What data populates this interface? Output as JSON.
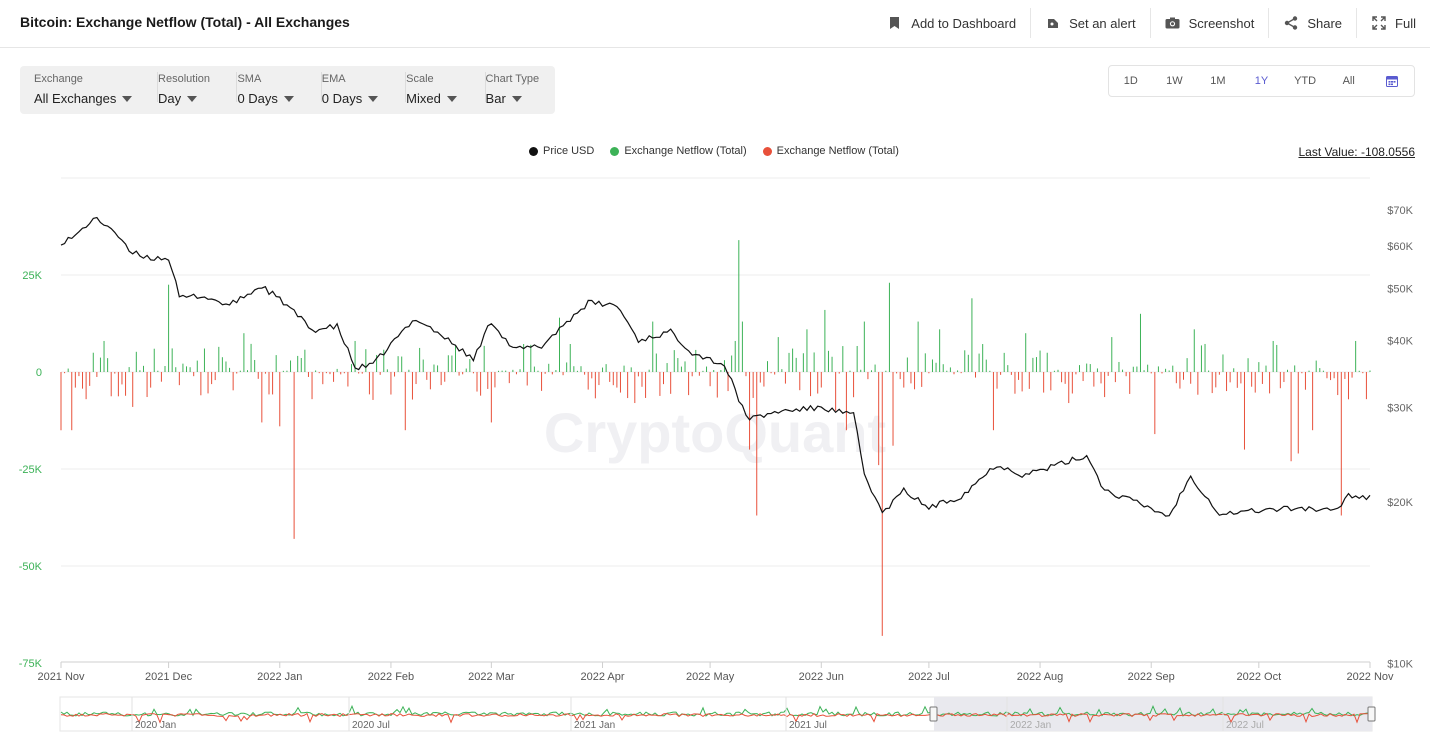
{
  "page": {
    "title": "Bitcoin: Exchange Netflow (Total) - All Exchanges"
  },
  "header_actions": [
    {
      "label": "Add to Dashboard",
      "icon": "bookmark-icon"
    },
    {
      "label": "Set an alert",
      "icon": "bell-icon"
    },
    {
      "label": "Screenshot",
      "icon": "camera-icon"
    },
    {
      "label": "Share",
      "icon": "share-icon"
    },
    {
      "label": "Full",
      "icon": "expand-icon"
    }
  ],
  "controls": [
    {
      "label": "Exchange",
      "value": "All Exchanges"
    },
    {
      "label": "Resolution",
      "value": "Day"
    },
    {
      "label": "SMA",
      "value": "0 Days"
    },
    {
      "label": "EMA",
      "value": "0 Days"
    },
    {
      "label": "Scale",
      "value": "Mixed"
    },
    {
      "label": "Chart Type",
      "value": "Bar"
    }
  ],
  "ranges": {
    "options": [
      "1D",
      "1W",
      "1M",
      "1Y",
      "YTD",
      "All"
    ],
    "active": "1Y",
    "calendar_icon": "calendar-icon"
  },
  "legend": [
    {
      "label": "Price USD",
      "color": "#111111"
    },
    {
      "label": "Exchange Netflow (Total)",
      "color": "#3cb257"
    },
    {
      "label": "Exchange Netflow (Total)",
      "color": "#e8503a"
    }
  ],
  "last_value": "Last Value: -108.0556",
  "watermark": "CryptoQuant",
  "chart_data": {
    "type": "bar",
    "x_range": [
      "2021-11-01",
      "2022-11-01"
    ],
    "x_ticks": [
      "2021 Nov",
      "2021 Dec",
      "2022 Jan",
      "2022 Feb",
      "2022 Mar",
      "2022 Apr",
      "2022 May",
      "2022 Jun",
      "2022 Jul",
      "2022 Aug",
      "2022 Sep",
      "2022 Oct",
      "2022 Nov"
    ],
    "y_left": {
      "ticks": [
        "25K",
        "0",
        "-25K",
        "-50K",
        "-75K"
      ],
      "range": [
        -75000,
        50000
      ],
      "scale": "linear"
    },
    "y_right": {
      "ticks": [
        "$70K",
        "$60K",
        "$50K",
        "$40K",
        "$30K",
        "$20K",
        "$10K"
      ],
      "range": [
        10000,
        75000
      ],
      "scale": "log"
    },
    "grid": true,
    "netflow_spikes": [
      {
        "date": "2021-11-01",
        "value": -15000
      },
      {
        "date": "2021-11-04",
        "value": -15000
      },
      {
        "date": "2021-11-08",
        "value": -7000
      },
      {
        "date": "2021-11-13",
        "value": 8000
      },
      {
        "date": "2021-11-21",
        "value": -9000
      },
      {
        "date": "2021-11-27",
        "value": 6000
      },
      {
        "date": "2021-12-01",
        "value": 22500
      },
      {
        "date": "2021-12-10",
        "value": -6000
      },
      {
        "date": "2021-12-22",
        "value": 10000
      },
      {
        "date": "2021-12-27",
        "value": -13000
      },
      {
        "date": "2022-01-01",
        "value": -14000
      },
      {
        "date": "2022-01-05",
        "value": -43000
      },
      {
        "date": "2022-01-10",
        "value": -7000
      },
      {
        "date": "2022-01-22",
        "value": 8000
      },
      {
        "date": "2022-02-05",
        "value": -15000
      },
      {
        "date": "2022-02-19",
        "value": 7000
      },
      {
        "date": "2022-03-01",
        "value": -13000
      },
      {
        "date": "2022-03-12",
        "value": 7000
      },
      {
        "date": "2022-03-20",
        "value": 14000
      },
      {
        "date": "2022-04-10",
        "value": -8000
      },
      {
        "date": "2022-04-15",
        "value": 13000
      },
      {
        "date": "2022-05-08",
        "value": 8000
      },
      {
        "date": "2022-05-09",
        "value": 34000
      },
      {
        "date": "2022-05-10",
        "value": 13000
      },
      {
        "date": "2022-05-12",
        "value": -20000
      },
      {
        "date": "2022-05-14",
        "value": -37000
      },
      {
        "date": "2022-05-20",
        "value": 9000
      },
      {
        "date": "2022-05-28",
        "value": 11000
      },
      {
        "date": "2022-06-02",
        "value": 16000
      },
      {
        "date": "2022-06-05",
        "value": -10000
      },
      {
        "date": "2022-06-08",
        "value": -15000
      },
      {
        "date": "2022-06-13",
        "value": 13000
      },
      {
        "date": "2022-06-17",
        "value": -24000
      },
      {
        "date": "2022-06-18",
        "value": -68000
      },
      {
        "date": "2022-06-20",
        "value": 23000
      },
      {
        "date": "2022-06-21",
        "value": -19000
      },
      {
        "date": "2022-06-28",
        "value": 13000
      },
      {
        "date": "2022-07-04",
        "value": 11000
      },
      {
        "date": "2022-07-13",
        "value": 19000
      },
      {
        "date": "2022-07-19",
        "value": -15000
      },
      {
        "date": "2022-07-28",
        "value": 10000
      },
      {
        "date": "2022-08-09",
        "value": -8000
      },
      {
        "date": "2022-08-21",
        "value": 9000
      },
      {
        "date": "2022-08-29",
        "value": 15000
      },
      {
        "date": "2022-09-02",
        "value": -16000
      },
      {
        "date": "2022-09-13",
        "value": 11000
      },
      {
        "date": "2022-09-27",
        "value": -20000
      },
      {
        "date": "2022-10-05",
        "value": 8000
      },
      {
        "date": "2022-10-10",
        "value": -23000
      },
      {
        "date": "2022-10-12",
        "value": -21000
      },
      {
        "date": "2022-10-16",
        "value": -15000
      },
      {
        "date": "2022-10-24",
        "value": -37000
      },
      {
        "date": "2022-10-28",
        "value": 8000
      },
      {
        "date": "2022-10-31",
        "value": -7000
      }
    ],
    "price_usd": [
      {
        "date": "2021-11-01",
        "value": 61000
      },
      {
        "date": "2021-11-05",
        "value": 62500
      },
      {
        "date": "2021-11-10",
        "value": 67500
      },
      {
        "date": "2021-11-15",
        "value": 65000
      },
      {
        "date": "2021-11-20",
        "value": 58500
      },
      {
        "date": "2021-11-26",
        "value": 57000
      },
      {
        "date": "2021-12-01",
        "value": 57000
      },
      {
        "date": "2021-12-04",
        "value": 48000
      },
      {
        "date": "2021-12-10",
        "value": 48500
      },
      {
        "date": "2021-12-18",
        "value": 46500
      },
      {
        "date": "2021-12-27",
        "value": 50500
      },
      {
        "date": "2022-01-03",
        "value": 46500
      },
      {
        "date": "2022-01-10",
        "value": 41800
      },
      {
        "date": "2022-01-17",
        "value": 42500
      },
      {
        "date": "2022-01-22",
        "value": 35500
      },
      {
        "date": "2022-01-27",
        "value": 36000
      },
      {
        "date": "2022-02-08",
        "value": 44000
      },
      {
        "date": "2022-02-16",
        "value": 40500
      },
      {
        "date": "2022-02-24",
        "value": 36800
      },
      {
        "date": "2022-03-01",
        "value": 43500
      },
      {
        "date": "2022-03-07",
        "value": 38500
      },
      {
        "date": "2022-03-15",
        "value": 39000
      },
      {
        "date": "2022-03-28",
        "value": 47000
      },
      {
        "date": "2022-04-05",
        "value": 46500
      },
      {
        "date": "2022-04-11",
        "value": 40000
      },
      {
        "date": "2022-04-20",
        "value": 41500
      },
      {
        "date": "2022-04-26",
        "value": 38000
      },
      {
        "date": "2022-05-05",
        "value": 36000
      },
      {
        "date": "2022-05-09",
        "value": 31000
      },
      {
        "date": "2022-05-12",
        "value": 28500
      },
      {
        "date": "2022-05-20",
        "value": 29500
      },
      {
        "date": "2022-06-01",
        "value": 30000
      },
      {
        "date": "2022-06-10",
        "value": 29000
      },
      {
        "date": "2022-06-13",
        "value": 22500
      },
      {
        "date": "2022-06-18",
        "value": 19000
      },
      {
        "date": "2022-06-24",
        "value": 21000
      },
      {
        "date": "2022-07-01",
        "value": 19500
      },
      {
        "date": "2022-07-10",
        "value": 20500
      },
      {
        "date": "2022-07-20",
        "value": 23500
      },
      {
        "date": "2022-07-27",
        "value": 22500
      },
      {
        "date": "2022-08-02",
        "value": 23000
      },
      {
        "date": "2022-08-14",
        "value": 24400
      },
      {
        "date": "2022-08-19",
        "value": 21000
      },
      {
        "date": "2022-08-26",
        "value": 20200
      },
      {
        "date": "2022-09-06",
        "value": 18800
      },
      {
        "date": "2022-09-12",
        "value": 22300
      },
      {
        "date": "2022-09-20",
        "value": 19000
      },
      {
        "date": "2022-10-01",
        "value": 19300
      },
      {
        "date": "2022-10-13",
        "value": 19500
      },
      {
        "date": "2022-10-22",
        "value": 19200
      },
      {
        "date": "2022-10-26",
        "value": 20600
      },
      {
        "date": "2022-11-01",
        "value": 20400
      }
    ]
  },
  "navigator": {
    "labels": [
      "2020 Jan",
      "2020 Jul",
      "2021 Jan",
      "2021 Jul",
      "2022 Jan",
      "2022 Jul"
    ]
  }
}
